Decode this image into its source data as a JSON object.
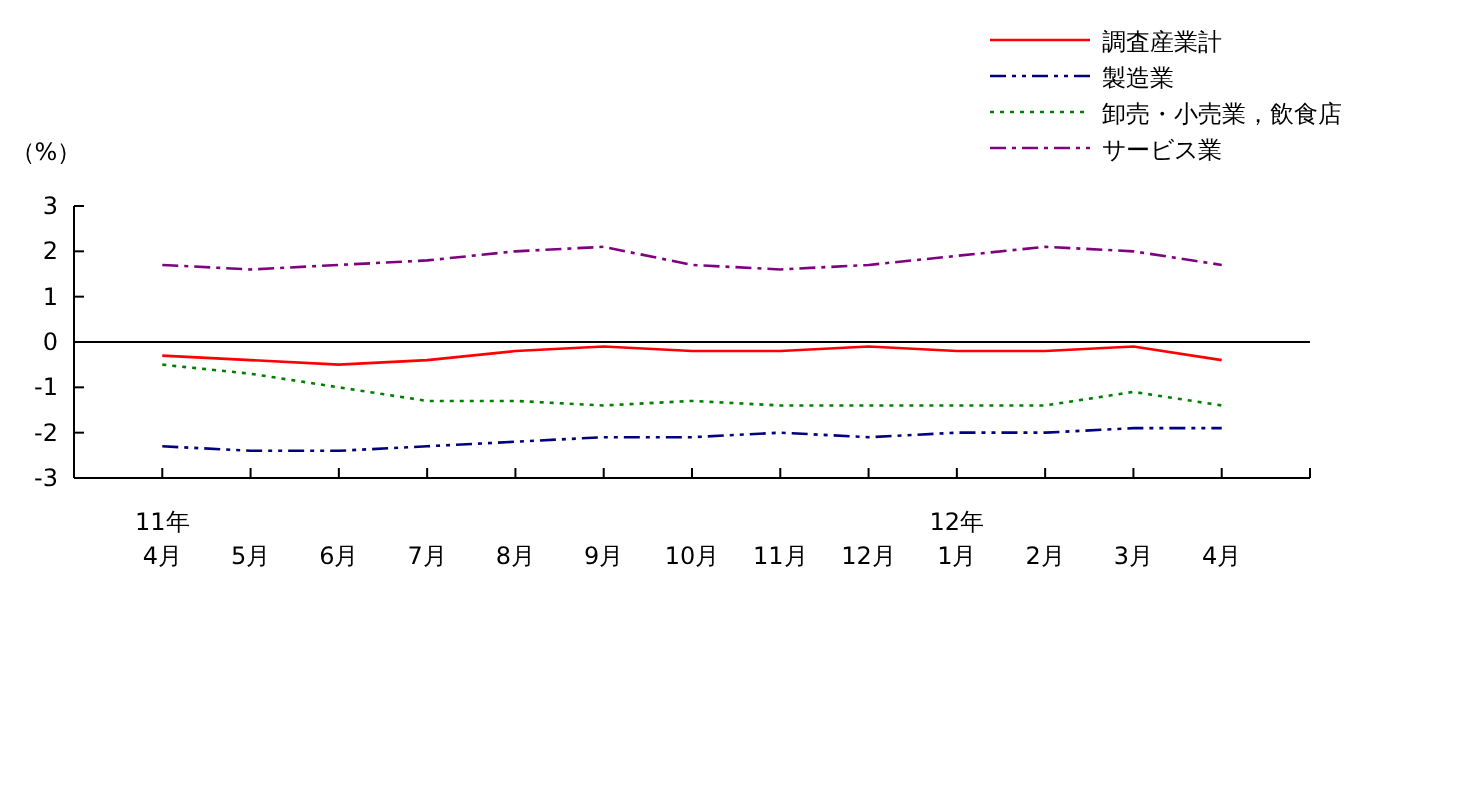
{
  "chart_data": {
    "type": "line",
    "ylabel": "（%）",
    "categories": [
      "11年\n4月",
      "5月",
      "6月",
      "7月",
      "8月",
      "9月",
      "10月",
      "11月",
      "12月",
      "12年\n1月",
      "2月",
      "3月",
      "4月"
    ],
    "ylim": [
      -3,
      3
    ],
    "yticks": [
      -3,
      -2,
      -1,
      0,
      1,
      2,
      3
    ],
    "legend": "top right",
    "grid": false,
    "marker": "none",
    "ref_lines": [
      {
        "axis": "y",
        "value": 0,
        "color": "#000000"
      }
    ],
    "series": [
      {
        "name": "調査産業計",
        "color": "#ff0000",
        "line_style": "solid",
        "values": [
          -0.3,
          -0.4,
          -0.5,
          -0.4,
          -0.2,
          -0.1,
          -0.2,
          -0.2,
          -0.1,
          -0.2,
          -0.2,
          -0.1,
          -0.4
        ]
      },
      {
        "name": "製造業",
        "color": "#000080",
        "line_style": "dashdotdot",
        "values": [
          -2.3,
          -2.4,
          -2.4,
          -2.3,
          -2.2,
          -2.1,
          -2.1,
          -2.0,
          -2.1,
          -2.0,
          -2.0,
          -1.9,
          -1.9
        ]
      },
      {
        "name": "卸売・小売業，飲食店",
        "color": "#008000",
        "line_style": "dotted",
        "values": [
          -0.5,
          -0.7,
          -1.0,
          -1.3,
          -1.3,
          -1.4,
          -1.3,
          -1.4,
          -1.4,
          -1.4,
          -1.4,
          -1.1,
          -1.4
        ]
      },
      {
        "name": "サービス業",
        "color": "#800080",
        "line_style": "dashdot",
        "values": [
          1.7,
          1.6,
          1.7,
          1.8,
          2.0,
          2.1,
          1.7,
          1.6,
          1.7,
          1.9,
          2.1,
          2.0,
          1.7
        ]
      }
    ]
  }
}
